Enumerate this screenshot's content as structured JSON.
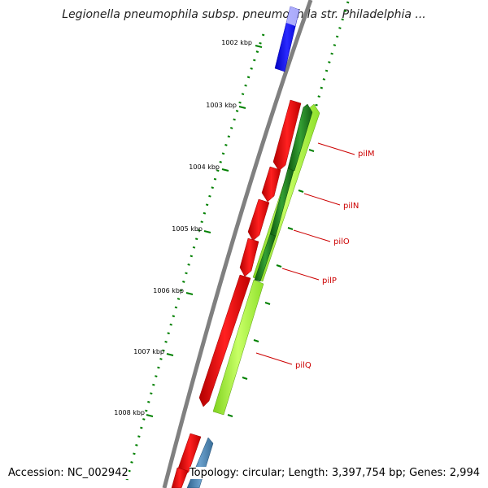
{
  "title": "Legionella pneumophila subsp. pneumophila str. Philadelphia ...",
  "ticks": [
    {
      "label": "1002 kbp"
    },
    {
      "label": "1003 kbp"
    },
    {
      "label": "1004 kbp"
    },
    {
      "label": "1005 kbp"
    },
    {
      "label": "1006 kbp"
    },
    {
      "label": "1007 kbp"
    },
    {
      "label": "1008 kbp"
    }
  ],
  "genes": [
    {
      "label": "pilM"
    },
    {
      "label": "pilN"
    },
    {
      "label": "pilO"
    },
    {
      "label": "pilP"
    },
    {
      "label": "pilQ"
    }
  ],
  "footer": {
    "accession": "Accession: NC_002942",
    "summary": "Topology: circular; Length: 3,397,754 bp; Genes: 2,994"
  },
  "colors": {
    "backbone": "#808080",
    "forward_cds": "#ff0000",
    "reverse_cds": "#99ff33",
    "reverse_dark": "#1e7a1e",
    "blue_feature": "#0000ff",
    "steel_feature": "#4682b4",
    "tick": "#008000",
    "label": "#cc0000"
  }
}
